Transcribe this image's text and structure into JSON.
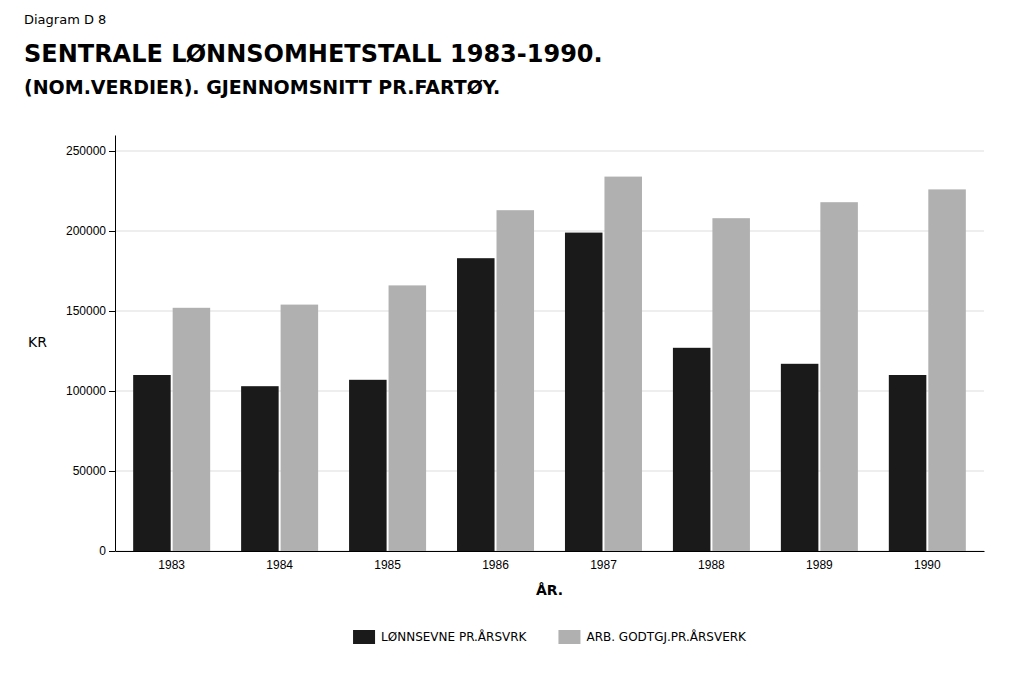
{
  "chart_data": {
    "type": "bar",
    "annotations": [
      "Diagram D 8"
    ],
    "title": "SENTRALE LØNNSOMHETSTALL 1983-1990.",
    "subtitle": "(NOM.VERDIER). GJENNOMSNITT PR.FARTØY.",
    "x_label": "ÅR.",
    "y_label": "KR",
    "categories": [
      "1983",
      "1984",
      "1985",
      "1986",
      "1987",
      "1988",
      "1989",
      "1990"
    ],
    "series": [
      {
        "name": "LØNNSEVNE PR.ÅRSVRK",
        "color": "#1a1a1a",
        "values": [
          110000,
          103000,
          107000,
          183000,
          199000,
          127000,
          117000,
          110000
        ]
      },
      {
        "name": "ARB. GODTGJ.PR.ÅRSVERK",
        "color": "#b0b0b0",
        "values": [
          152000,
          154000,
          166000,
          213000,
          234000,
          208000,
          218000,
          226000
        ]
      }
    ],
    "ylim": [
      0,
      260000
    ],
    "yticks": [
      0,
      50000,
      100000,
      150000,
      200000,
      250000
    ],
    "grid": true,
    "legend": "bottom"
  }
}
